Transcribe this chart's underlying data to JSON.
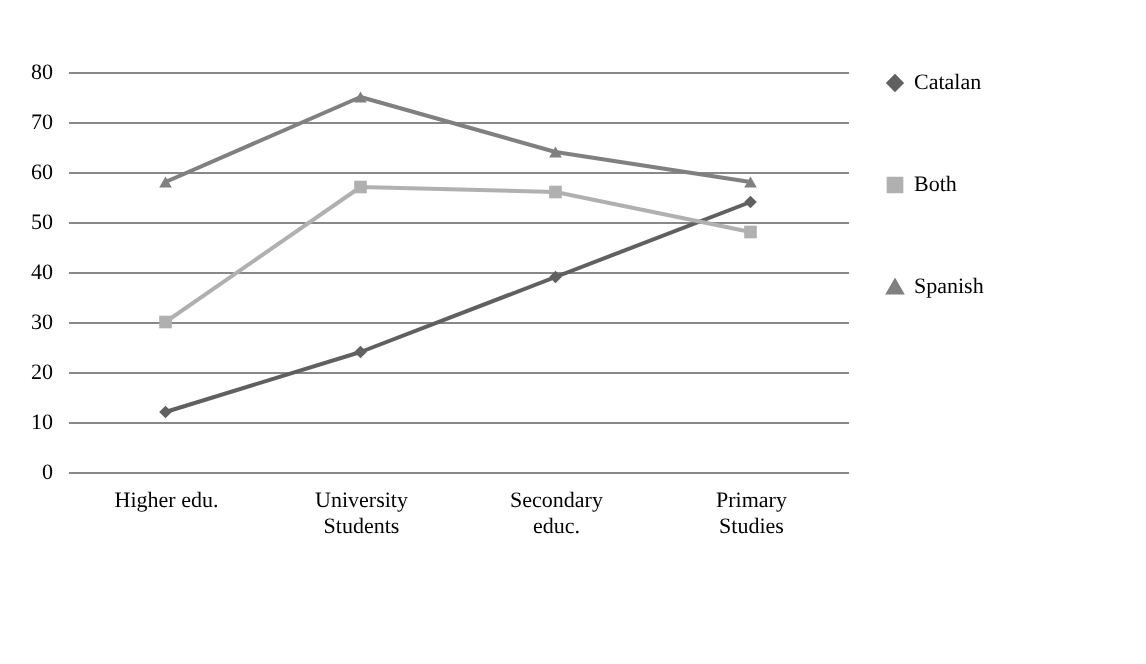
{
  "chart_data": {
    "type": "line",
    "categories": [
      "Higher edu.",
      "University Students",
      "Secondary educ.",
      "Primary Studies"
    ],
    "series": [
      {
        "name": "Catalan",
        "color": "#606060",
        "marker": "diamond",
        "values": [
          12,
          24,
          39,
          54
        ]
      },
      {
        "name": "Both",
        "color": "#b0b0b0",
        "marker": "square",
        "values": [
          30,
          57,
          56,
          48
        ]
      },
      {
        "name": "Spanish",
        "color": "#808080",
        "marker": "triangle",
        "values": [
          58,
          75,
          64,
          58
        ]
      }
    ],
    "ylim": [
      0,
      80
    ],
    "yticks": [
      0,
      10,
      20,
      30,
      40,
      50,
      60,
      70,
      80
    ],
    "grid": "y",
    "legend": "right",
    "line_style": "solid"
  }
}
